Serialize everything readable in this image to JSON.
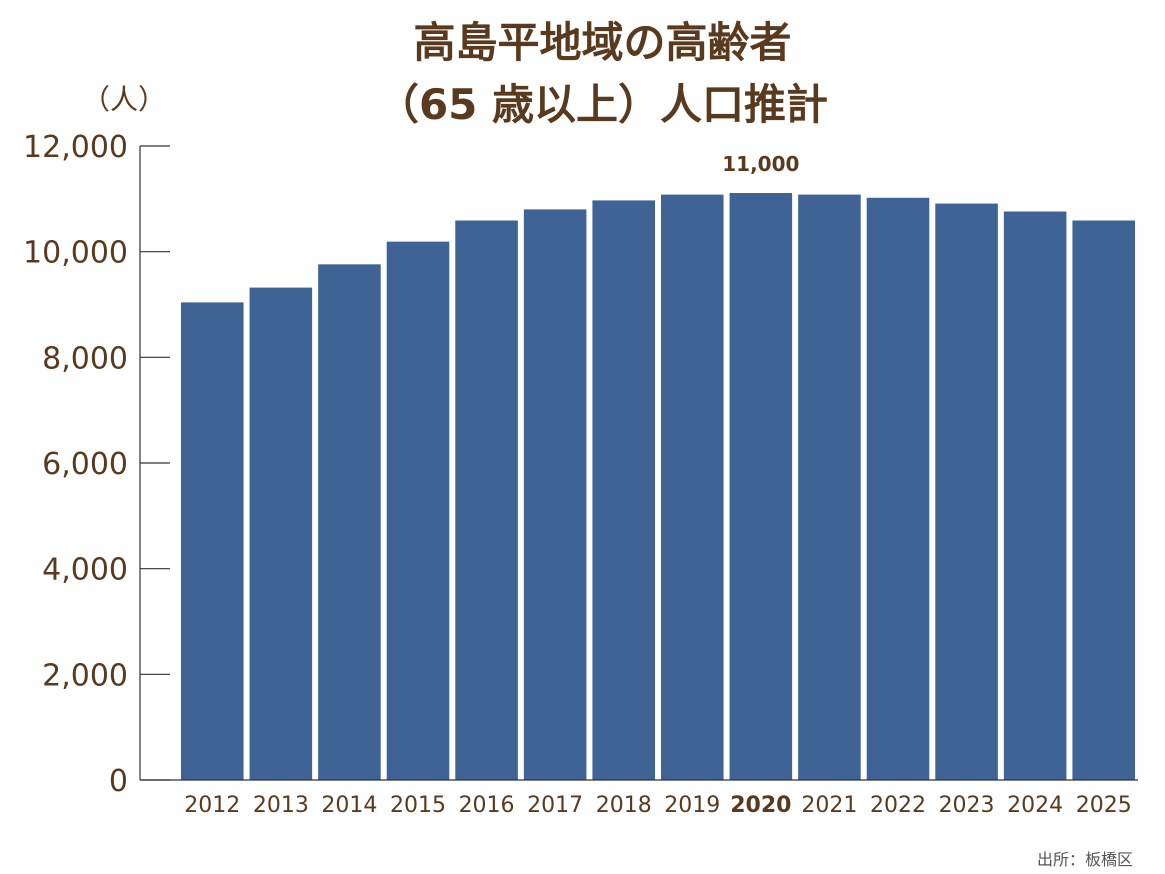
{
  "chart_data": {
    "type": "bar",
    "title": [
      "高島平地域の高齢者",
      "（65 歳以上）人口推計"
    ],
    "y_unit": "（人）",
    "categories": [
      "2012",
      "2013",
      "2014",
      "2015",
      "2016",
      "2017",
      "2018",
      "2019",
      "2020",
      "2021",
      "2022",
      "2023",
      "2024",
      "2025"
    ],
    "values": [
      9040,
      9320,
      9760,
      10190,
      10590,
      10800,
      10970,
      11080,
      11110,
      11080,
      11020,
      10910,
      10760,
      10590
    ],
    "highlight_category": "2020",
    "highlight_label": "11,000",
    "ylim": [
      0,
      12000
    ],
    "yticks": [
      0,
      2000,
      4000,
      6000,
      8000,
      10000,
      12000
    ],
    "ytick_labels": [
      "0",
      "2,000",
      "4,000",
      "6,000",
      "8,000",
      "10,000",
      "12,000"
    ],
    "grid": false,
    "legend": "none",
    "source": "出所：板橋区",
    "colors": {
      "bar": "#3f6395",
      "text": "#5a3a1e",
      "axis": "#333333"
    }
  }
}
